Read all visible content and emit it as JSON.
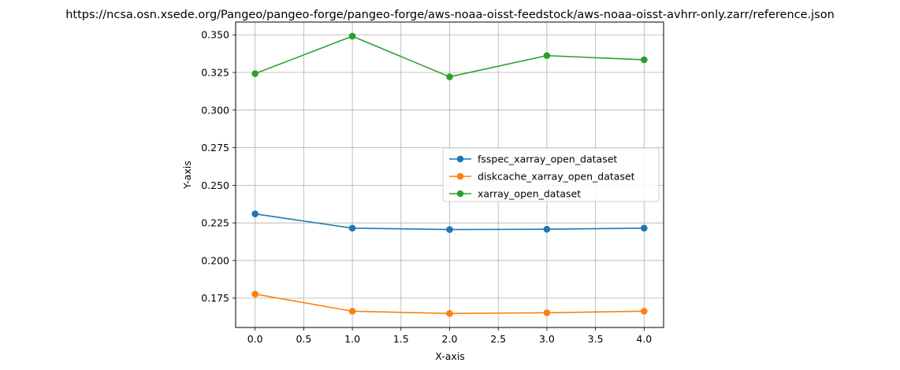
{
  "chart_data": {
    "type": "line",
    "title": "https://ncsa.osn.xsede.org/Pangeo/pangeo-forge/pangeo-forge/aws-noaa-oisst-feedstock/aws-noaa-oisst-avhrr-only.zarr/reference.json",
    "xlabel": "X-axis",
    "ylabel": "Y-axis",
    "x": [
      0,
      1,
      2,
      3,
      4
    ],
    "xlim": [
      -0.2,
      4.2
    ],
    "ylim": [
      0.1555,
      0.3585
    ],
    "xticks": [
      0.0,
      0.5,
      1.0,
      1.5,
      2.0,
      2.5,
      3.0,
      3.5,
      4.0
    ],
    "xtick_labels": [
      "0.0",
      "0.5",
      "1.0",
      "1.5",
      "2.0",
      "2.5",
      "3.0",
      "3.5",
      "4.0"
    ],
    "yticks": [
      0.175,
      0.2,
      0.225,
      0.25,
      0.275,
      0.3,
      0.325,
      0.35
    ],
    "ytick_labels": [
      "0.175",
      "0.200",
      "0.225",
      "0.250",
      "0.275",
      "0.300",
      "0.325",
      "0.350"
    ],
    "grid": true,
    "legend_position": "center-right",
    "series": [
      {
        "name": "fsspec_xarray_open_dataset",
        "color": "#1f77b4",
        "values": [
          0.231,
          0.2215,
          0.2206,
          0.2208,
          0.2215
        ]
      },
      {
        "name": "diskcache_xarray_open_dataset",
        "color": "#ff7f0e",
        "values": [
          0.1777,
          0.1663,
          0.1648,
          0.1653,
          0.1663
        ]
      },
      {
        "name": "xarray_open_dataset",
        "color": "#2ca02c",
        "values": [
          0.3242,
          0.3491,
          0.3221,
          0.3362,
          0.3334
        ]
      }
    ]
  }
}
